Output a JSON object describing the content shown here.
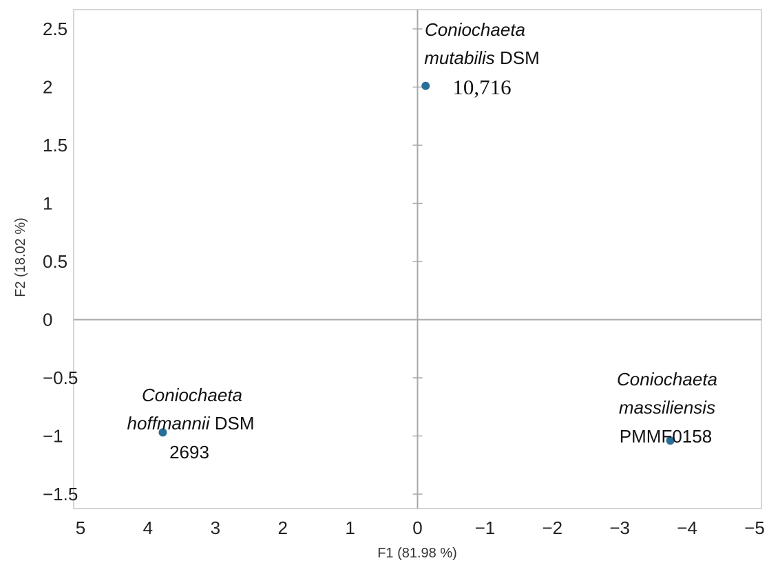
{
  "chart_data": {
    "type": "scatter",
    "xlabel": "F1 (81.98 %)",
    "ylabel": "F2 (18.02 %)",
    "xlim": [
      5,
      -5
    ],
    "ylim": [
      -1.5,
      2.6
    ],
    "x_ticks": [
      "5",
      "4",
      "3",
      "2",
      "1",
      "0",
      "−1",
      "−2",
      "−3",
      "−4",
      "−5"
    ],
    "x_tick_values": [
      5,
      4,
      3,
      2,
      1,
      0,
      -1,
      -2,
      -3,
      -4,
      -5
    ],
    "y_ticks": [
      "2.5",
      "2",
      "1.5",
      "1",
      "0.5",
      "0",
      "−0.5",
      "−1",
      "−1.5"
    ],
    "y_tick_values": [
      2.5,
      2,
      1.5,
      1,
      0.5,
      0,
      -0.5,
      -1,
      -1.5
    ],
    "grid": false,
    "marker_color": "#2a6f97",
    "points": [
      {
        "x": -0.12,
        "y": 2.01,
        "label_lines": [
          [
            {
              "text": "Coniochaeta",
              "italic": true
            }
          ],
          [
            {
              "text": "mutabilis",
              "italic": true
            },
            {
              "text": " DSM",
              "italic": false
            }
          ],
          [
            {
              "text": "10,716",
              "italic": false,
              "serif": true
            }
          ]
        ]
      },
      {
        "x": 3.78,
        "y": -0.97,
        "label_lines": [
          [
            {
              "text": "Coniochaeta",
              "italic": true
            }
          ],
          [
            {
              "text": "hoffmannii",
              "italic": true
            },
            {
              "text": " DSM",
              "italic": false
            }
          ],
          [
            {
              "text": "2693",
              "italic": false
            }
          ]
        ]
      },
      {
        "x": -3.75,
        "y": -1.04,
        "label_lines": [
          [
            {
              "text": "Coniochaeta",
              "italic": true
            }
          ],
          [
            {
              "text": "massiliensis",
              "italic": true
            }
          ],
          [
            {
              "text": "PMMF0158",
              "italic": false
            }
          ]
        ]
      }
    ]
  }
}
